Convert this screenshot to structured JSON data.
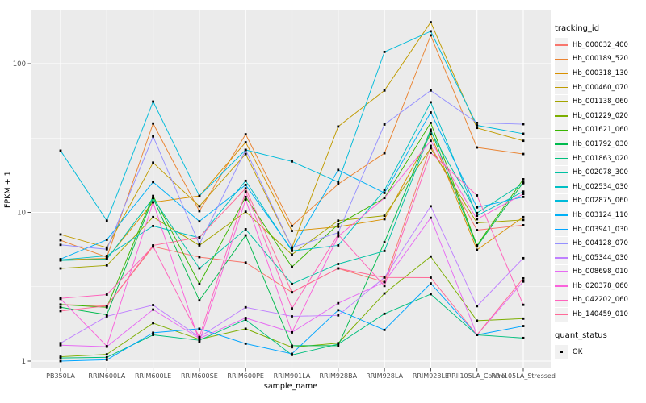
{
  "figure": {
    "panel_background": "#EBEBEB",
    "grid_color": "#FFFFFF",
    "tick_mark_color": "#333333",
    "tick_label_color": "#4D4D4D",
    "marker_color": "#000000"
  },
  "chart_data": {
    "type": "line",
    "title": "",
    "xlabel": "sample_name",
    "ylabel": "FPKM + 1",
    "y_scale": "log10",
    "y_ticks": [
      1,
      10,
      100
    ],
    "y_minor_ticks": [
      3.162,
      31.623
    ],
    "ylim": [
      0.93,
      240
    ],
    "grid": true,
    "legend_position": "right",
    "categories": [
      "PB350LA",
      "RRIM600LA",
      "RRIM600LE",
      "RRIM600SE",
      "RRIM600PE",
      "RRIM901LA",
      "RRIM928BA",
      "RRIM928LA",
      "RRIM928LE",
      "RRII105LA_Control",
      "RRII105LA_Stressed"
    ],
    "series": [
      {
        "name": "Hb_000032_400",
        "color": "#F8766D",
        "values": [
          2.4,
          2.35,
          5.9,
          5.0,
          4.6,
          2.9,
          4.2,
          3.4,
          28,
          7.6,
          8.2
        ]
      },
      {
        "name": "Hb_000189_520",
        "color": "#EA8331",
        "values": [
          6.5,
          5.0,
          39.6,
          10.2,
          33.5,
          8.1,
          15.5,
          25,
          155,
          27.3,
          24.7
        ]
      },
      {
        "name": "Hb_000318_130",
        "color": "#D89000",
        "values": [
          4.8,
          4.9,
          11.7,
          12.9,
          29.6,
          7.5,
          8.0,
          9.0,
          33.5,
          5.6,
          9.3
        ]
      },
      {
        "name": "Hb_000460_070",
        "color": "#C09B00",
        "values": [
          7.1,
          5.8,
          21.6,
          11.0,
          24.7,
          5.8,
          37.8,
          66,
          190,
          37,
          30.3
        ]
      },
      {
        "name": "Hb_001138_060",
        "color": "#A3A500",
        "values": [
          4.2,
          4.4,
          9.3,
          6.0,
          10.1,
          5.2,
          8.8,
          9.5,
          27,
          8.5,
          8.9
        ]
      },
      {
        "name": "Hb_001229_020",
        "color": "#7CAE00",
        "values": [
          1.07,
          1.11,
          1.8,
          1.4,
          1.65,
          1.24,
          1.32,
          2.85,
          5.05,
          1.87,
          1.93
        ]
      },
      {
        "name": "Hb_001621_060",
        "color": "#39B600",
        "values": [
          2.4,
          2.3,
          12.9,
          3.3,
          12.7,
          4.3,
          8.3,
          12.5,
          40,
          6.0,
          16.7
        ]
      },
      {
        "name": "Hb_001792_030",
        "color": "#00BB4E",
        "values": [
          2.3,
          2.05,
          12.5,
          2.56,
          7.0,
          1.27,
          1.27,
          6.3,
          36,
          5.9,
          15.9
        ]
      },
      {
        "name": "Hb_001863_020",
        "color": "#00BF7D",
        "values": [
          1.05,
          1.06,
          1.5,
          1.38,
          1.9,
          1.1,
          1.3,
          2.08,
          2.82,
          1.5,
          1.43
        ]
      },
      {
        "name": "Hb_002078_300",
        "color": "#00C1A3",
        "values": [
          4.75,
          4.85,
          12.5,
          4.2,
          7.7,
          3.3,
          4.5,
          5.5,
          35,
          9.9,
          15.7
        ]
      },
      {
        "name": "Hb_002534_030",
        "color": "#00BFC4",
        "values": [
          4.8,
          5.1,
          8.1,
          6.75,
          16.3,
          5.5,
          6.0,
          14.1,
          55,
          9.5,
          13.8
        ]
      },
      {
        "name": "Hb_002875_060",
        "color": "#00BBDA",
        "values": [
          26,
          8.8,
          55.6,
          12.9,
          26.3,
          22,
          16,
          120,
          165,
          38.5,
          33.8
        ]
      },
      {
        "name": "Hb_003124_110",
        "color": "#00B0F6",
        "values": [
          4.85,
          6.55,
          16,
          8.7,
          15.3,
          5.6,
          19.3,
          13.5,
          47,
          10.8,
          12.7
        ]
      },
      {
        "name": "Hb_003941_030",
        "color": "#00A5FF",
        "values": [
          1.0,
          1.02,
          1.55,
          1.65,
          1.31,
          1.12,
          2.2,
          1.62,
          3.33,
          1.5,
          1.72
        ]
      },
      {
        "name": "Hb_004128_070",
        "color": "#9590FF",
        "values": [
          6.05,
          5.65,
          32.4,
          6.1,
          26.3,
          5.8,
          7.3,
          39,
          66,
          40,
          39.2
        ]
      },
      {
        "name": "Hb_005344_030",
        "color": "#BF80FF",
        "values": [
          1.32,
          2.0,
          2.38,
          1.45,
          2.3,
          2.0,
          2.03,
          3.65,
          11,
          2.34,
          4.92
        ]
      },
      {
        "name": "Hb_008698_010",
        "color": "#E76BF3",
        "values": [
          1.28,
          1.25,
          2.22,
          1.42,
          1.95,
          1.56,
          2.45,
          3.4,
          9.2,
          1.5,
          3.43
        ]
      },
      {
        "name": "Hb_020378_060",
        "color": "#FA62DB",
        "values": [
          2.62,
          1.26,
          11.7,
          1.35,
          12.2,
          1.56,
          6.9,
          12.5,
          30.3,
          9.0,
          13.3
        ]
      },
      {
        "name": "Hb_042202_060",
        "color": "#FF62BC",
        "values": [
          2.64,
          2.8,
          5.9,
          1.45,
          13.8,
          2.26,
          7.1,
          3.2,
          25.2,
          13,
          2.39
        ]
      },
      {
        "name": "Hb_140459_010",
        "color": "#FF6A98",
        "values": [
          2.17,
          2.35,
          6.0,
          6.8,
          14.5,
          2.9,
          4.2,
          3.65,
          3.64,
          1.5,
          3.6
        ]
      }
    ],
    "legend": {
      "color_title": "tracking_id",
      "shape_title": "quant_status",
      "shape_items": [
        {
          "label": "OK",
          "shape": "square"
        }
      ]
    }
  }
}
